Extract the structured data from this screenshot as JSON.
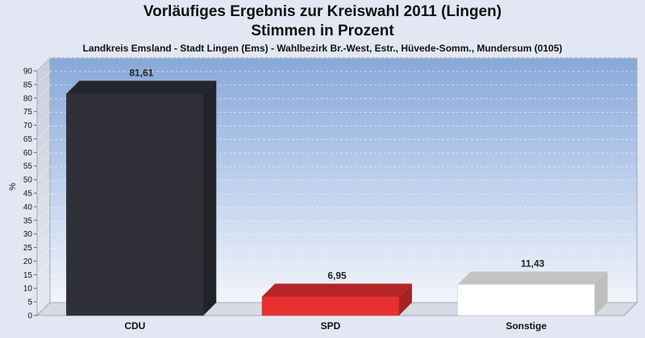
{
  "chart_data": {
    "type": "bar",
    "title": "Vorläufiges Ergebnis zur Kreiswahl 2011 (Lingen)",
    "title_line2": "Stimmen in Prozent",
    "subtitle": "Landkreis Emsland - Stadt Lingen (Ems) - Wahlbezirk Br.-West, Estr., Hüvede-Somm., Mundersum (0105)",
    "xlabel": "",
    "ylabel": "%",
    "ylim": [
      0,
      90
    ],
    "yticks": [
      0,
      5,
      10,
      15,
      20,
      25,
      30,
      35,
      40,
      45,
      50,
      55,
      60,
      65,
      70,
      75,
      80,
      85,
      90
    ],
    "categories": [
      "CDU",
      "SPD",
      "Sonstige"
    ],
    "values": [
      81.61,
      6.95,
      11.43
    ],
    "value_labels": [
      "81,61",
      "6,95",
      "11,43"
    ],
    "colors": [
      "#2f3038",
      "#e83030",
      "#ffffff"
    ],
    "grid": true,
    "legend": "none"
  }
}
